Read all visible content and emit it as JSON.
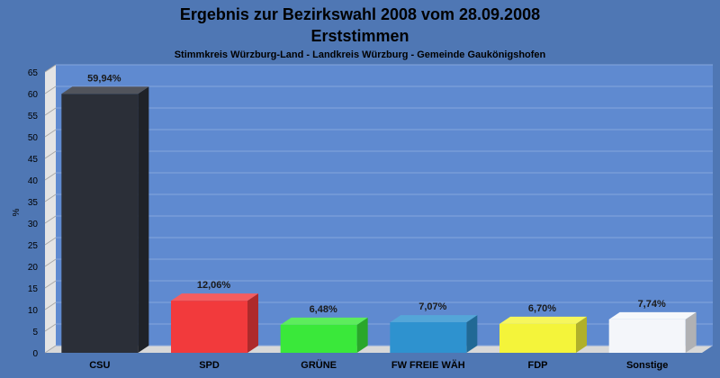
{
  "chart_data": {
    "type": "bar",
    "title": "Ergebnis zur Bezirkswahl 2008 vom 28.09.2008",
    "title2": "Erststimmen",
    "subtitle": "Stimmkreis Würzburg-Land - Landkreis Würzburg - Gemeinde Gaukönigshofen",
    "ylabel": "%",
    "ylim": [
      0,
      65
    ],
    "yticks": [
      0,
      5,
      10,
      15,
      20,
      25,
      30,
      35,
      40,
      45,
      50,
      55,
      60,
      65
    ],
    "grid": true,
    "categories": [
      "CSU",
      "SPD",
      "GRÜNE",
      "FW FREIE WÄH",
      "FDP",
      "Sonstige"
    ],
    "values": [
      59.94,
      12.06,
      6.48,
      7.07,
      6.7,
      7.74
    ],
    "data_labels": [
      "59,94%",
      "12,06%",
      "6,48%",
      "7,07%",
      "6,70%",
      "7,74%"
    ],
    "colors": [
      "#2b2f38",
      "#f23a3c",
      "#3ae83a",
      "#2e92cf",
      "#f4f43a",
      "#f4f6fa"
    ]
  }
}
